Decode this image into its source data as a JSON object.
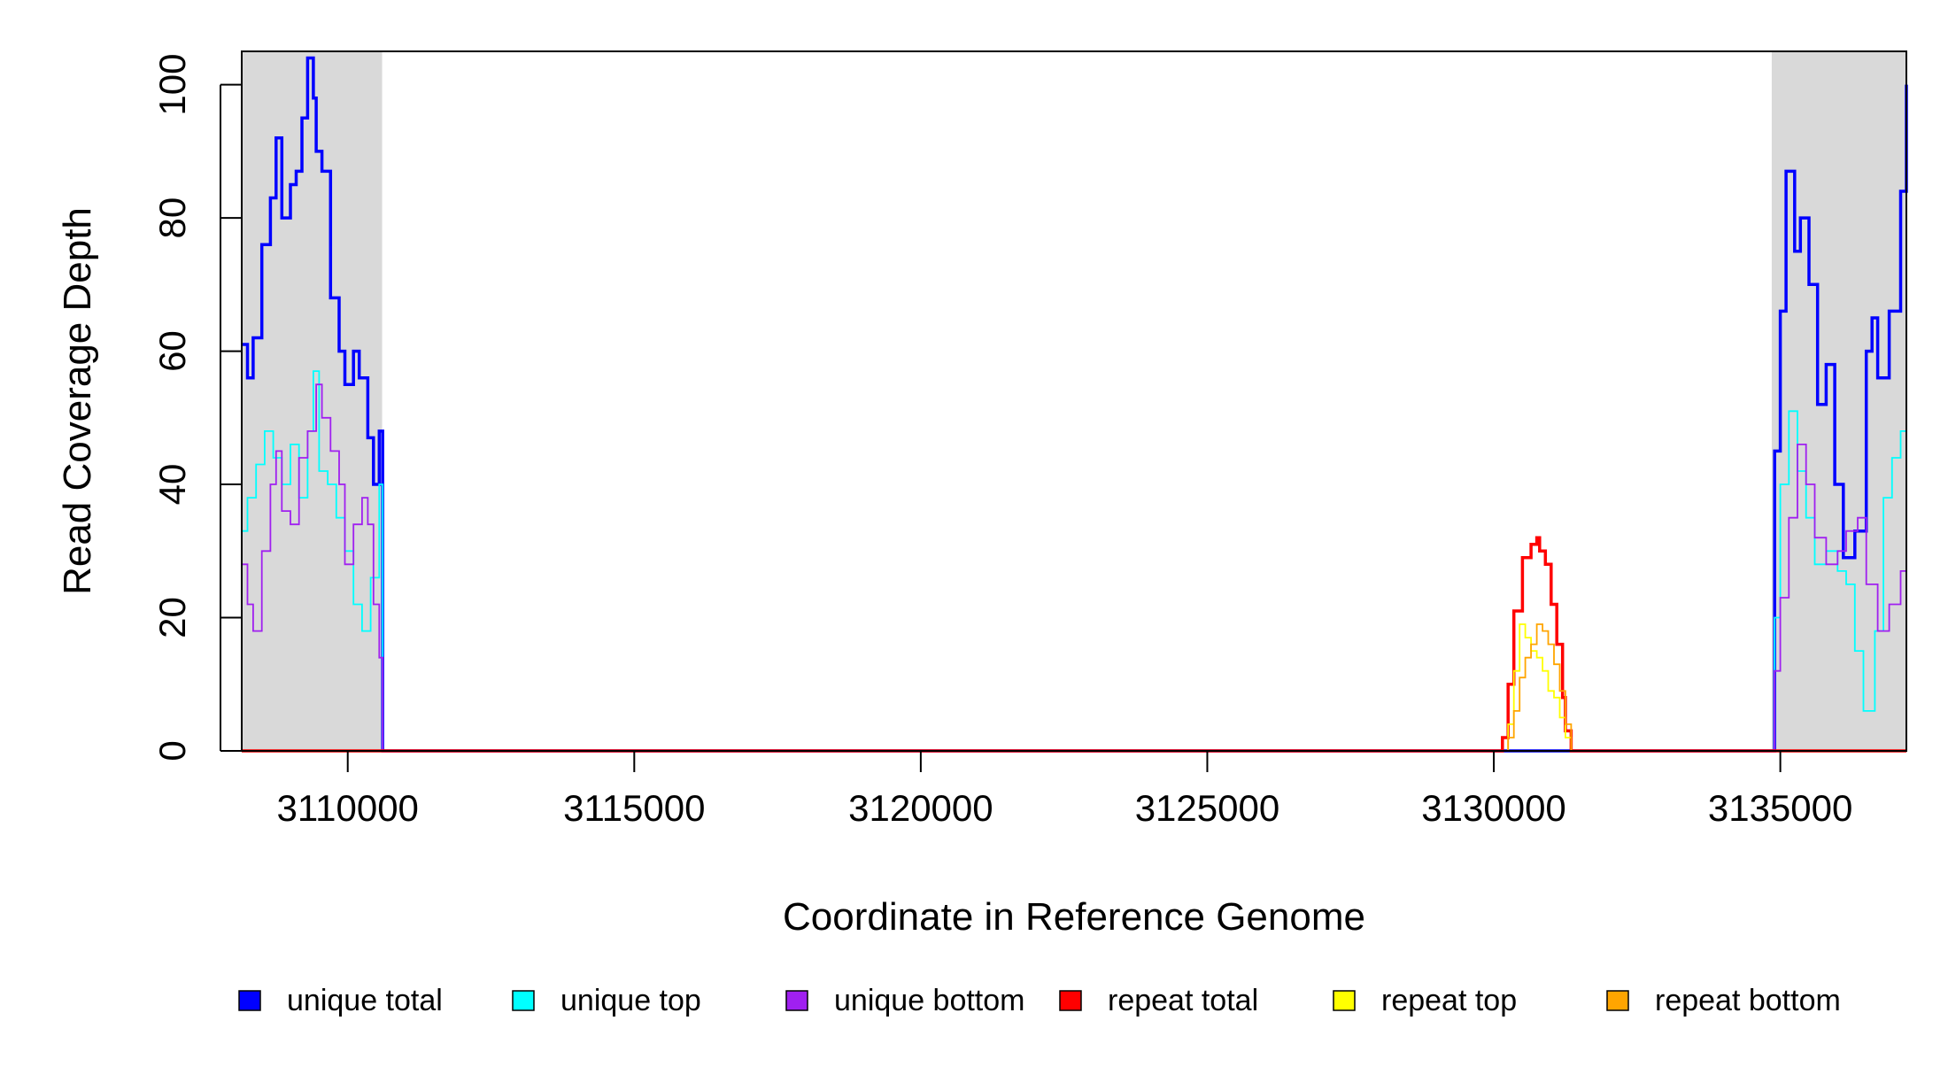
{
  "chart_data": {
    "type": "line",
    "title": "",
    "xlabel": "Coordinate in Reference Genome",
    "ylabel": "Read Coverage Depth",
    "xlim": [
      3108150,
      3137200
    ],
    "ylim": [
      0,
      105
    ],
    "x_ticks": [
      3110000,
      3115000,
      3120000,
      3125000,
      3130000,
      3135000
    ],
    "x_tick_labels": [
      "3110000",
      "3115000",
      "3120000",
      "3125000",
      "3130000",
      "3135000"
    ],
    "y_ticks": [
      0,
      20,
      40,
      60,
      80,
      100
    ],
    "y_tick_labels": [
      "0",
      "20",
      "40",
      "60",
      "80",
      "100"
    ],
    "shaded_regions": [
      [
        3108150,
        3110600
      ],
      [
        3134850,
        3137200
      ]
    ],
    "shade_color": "#d9d9d9",
    "grid": false,
    "legend_position": "bottom",
    "legend": [
      {
        "label": "unique total",
        "color": "#0000ff"
      },
      {
        "label": "unique top",
        "color": "#00ffff"
      },
      {
        "label": "unique bottom",
        "color": "#a020f0"
      },
      {
        "label": "repeat total",
        "color": "#ff0000"
      },
      {
        "label": "repeat top",
        "color": "#ffff00"
      },
      {
        "label": "repeat bottom",
        "color": "#ffa500"
      }
    ],
    "series": [
      {
        "name": "unique total",
        "color": "#0000ff",
        "x": [
          3108150,
          3108250,
          3108350,
          3108500,
          3108650,
          3108750,
          3108850,
          3109000,
          3109100,
          3109200,
          3109300,
          3109400,
          3109450,
          3109550,
          3109700,
          3109850,
          3109950,
          3110100,
          3110200,
          3110350,
          3110450,
          3110550,
          3110610,
          3110650,
          3130000,
          3134850,
          3134900,
          3135000,
          3135100,
          3135250,
          3135350,
          3135500,
          3135650,
          3135800,
          3135950,
          3136100,
          3136300,
          3136500,
          3136600,
          3136700,
          3136900,
          3137100,
          3137200
        ],
        "y": [
          61,
          56,
          62,
          76,
          83,
          92,
          80,
          85,
          87,
          95,
          104,
          98,
          90,
          87,
          68,
          60,
          55,
          60,
          56,
          47,
          40,
          48,
          0,
          0,
          0,
          0,
          45,
          66,
          87,
          75,
          80,
          70,
          52,
          58,
          40,
          29,
          33,
          60,
          65,
          56,
          66,
          84,
          100
        ]
      },
      {
        "name": "unique top",
        "color": "#00ffff",
        "x": [
          3108150,
          3108250,
          3108400,
          3108550,
          3108700,
          3108850,
          3109000,
          3109150,
          3109300,
          3109400,
          3109500,
          3109650,
          3109800,
          3109950,
          3110100,
          3110250,
          3110400,
          3110550,
          3110610,
          3110650,
          3130000,
          3134850,
          3134900,
          3135000,
          3135150,
          3135300,
          3135450,
          3135600,
          3135800,
          3136000,
          3136150,
          3136300,
          3136450,
          3136650,
          3136800,
          3136950,
          3137100,
          3137200
        ],
        "y": [
          33,
          38,
          43,
          48,
          44,
          40,
          46,
          38,
          48,
          57,
          42,
          40,
          35,
          30,
          22,
          18,
          26,
          40,
          0,
          0,
          0,
          0,
          20,
          40,
          51,
          42,
          35,
          28,
          30,
          27,
          25,
          15,
          6,
          18,
          38,
          44,
          48,
          51
        ]
      },
      {
        "name": "unique bottom",
        "color": "#a020f0",
        "x": [
          3108150,
          3108250,
          3108350,
          3108500,
          3108650,
          3108750,
          3108850,
          3109000,
          3109150,
          3109300,
          3109450,
          3109550,
          3109700,
          3109850,
          3109950,
          3110100,
          3110250,
          3110350,
          3110450,
          3110550,
          3110610,
          3110650,
          3130000,
          3134850,
          3134900,
          3135000,
          3135150,
          3135300,
          3135450,
          3135600,
          3135800,
          3136000,
          3136150,
          3136350,
          3136500,
          3136700,
          3136900,
          3137100,
          3137200
        ],
        "y": [
          28,
          22,
          18,
          30,
          40,
          45,
          36,
          34,
          44,
          48,
          55,
          50,
          45,
          40,
          28,
          34,
          38,
          34,
          22,
          14,
          0,
          0,
          0,
          0,
          12,
          23,
          35,
          46,
          40,
          32,
          28,
          30,
          33,
          35,
          25,
          18,
          22,
          27,
          33
        ]
      },
      {
        "name": "repeat total",
        "color": "#ff0000",
        "x": [
          3108150,
          3130100,
          3130150,
          3130250,
          3130350,
          3130500,
          3130650,
          3130750,
          3130800,
          3130900,
          3131000,
          3131100,
          3131200,
          3131250,
          3131350,
          3137200
        ],
        "y": [
          0,
          0,
          2,
          10,
          21,
          29,
          31,
          32,
          30,
          28,
          22,
          16,
          8,
          3,
          0,
          0
        ]
      },
      {
        "name": "repeat top",
        "color": "#ffff00",
        "x": [
          3108150,
          3130150,
          3130250,
          3130350,
          3130450,
          3130550,
          3130650,
          3130750,
          3130850,
          3130950,
          3131050,
          3131150,
          3131250,
          3131350,
          3137200
        ],
        "y": [
          0,
          0,
          4,
          12,
          19,
          17,
          15,
          14,
          12,
          9,
          8,
          5,
          2,
          0,
          0
        ]
      },
      {
        "name": "repeat bottom",
        "color": "#ffa500",
        "x": [
          3108150,
          3130150,
          3130250,
          3130350,
          3130450,
          3130550,
          3130650,
          3130750,
          3130850,
          3130950,
          3131050,
          3131150,
          3131250,
          3131350,
          3137200
        ],
        "y": [
          0,
          0,
          2,
          6,
          11,
          14,
          16,
          19,
          18,
          16,
          13,
          9,
          4,
          0,
          0
        ]
      }
    ]
  }
}
